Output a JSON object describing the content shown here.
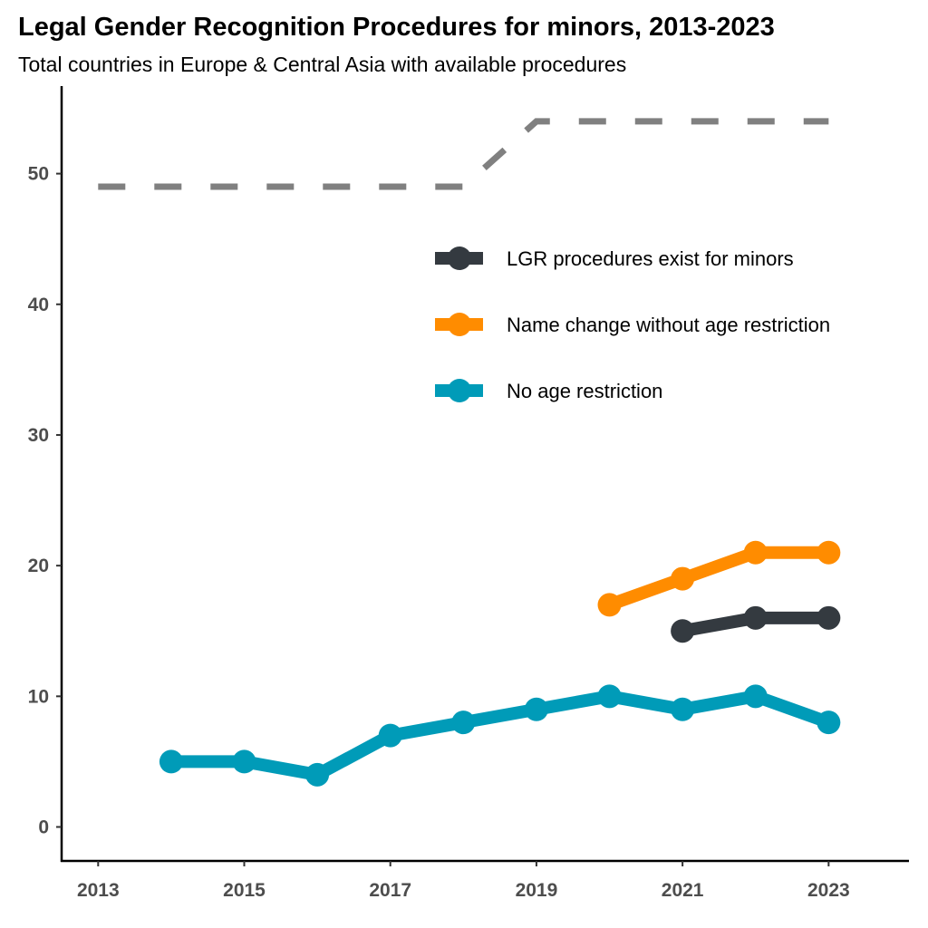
{
  "chart_data": {
    "type": "line",
    "title": "Legal Gender Recognition Procedures for minors, 2013-2023",
    "subtitle": "Total countries in Europe & Central Asia with available procedures",
    "xlabel": "",
    "ylabel": "",
    "xlim": [
      2012.5,
      2024.1
    ],
    "ylim": [
      -2.6,
      56.7
    ],
    "x_ticks": [
      2013,
      2015,
      2017,
      2019,
      2021,
      2023
    ],
    "y_ticks": [
      0,
      10,
      20,
      30,
      40,
      50
    ],
    "grid": false,
    "legend_position": "top-right",
    "reference_line": {
      "style": "dashed",
      "color": "#808080",
      "x": [
        2013,
        2014,
        2015,
        2016,
        2017,
        2018,
        2019,
        2020,
        2021,
        2022,
        2023
      ],
      "values": [
        49,
        49,
        49,
        49,
        49,
        49,
        54,
        54,
        54,
        54,
        54
      ]
    },
    "series": [
      {
        "name": "LGR procedures exist for minors",
        "color": "#343a40",
        "x": [
          2021,
          2022,
          2023
        ],
        "values": [
          15,
          16,
          16
        ]
      },
      {
        "name": "Name change without age restriction",
        "color": "#ff8c00",
        "x": [
          2020,
          2021,
          2022,
          2023
        ],
        "values": [
          17,
          19,
          21,
          21
        ]
      },
      {
        "name": "No age restriction",
        "color": "#009bb8",
        "x": [
          2014,
          2015,
          2016,
          2017,
          2018,
          2019,
          2020,
          2021,
          2022,
          2023
        ],
        "values": [
          5,
          5,
          4,
          7,
          8,
          9,
          10,
          9,
          10,
          8
        ]
      }
    ]
  }
}
